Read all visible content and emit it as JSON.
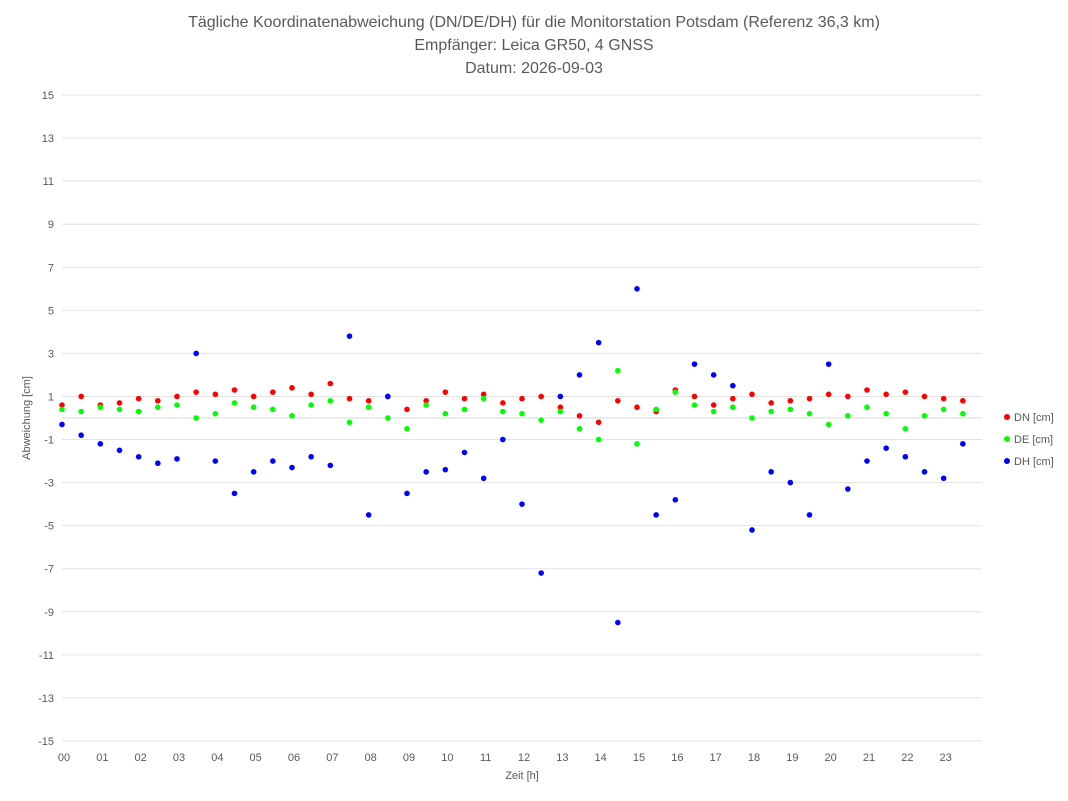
{
  "chart_data": {
    "type": "scatter",
    "title": "Tägliche Koordinatenabweichung (DN/DE/DH) für die Monitorstation Potsdam (Referenz 36,3 km)",
    "subtitle": "Empfänger: Leica GR50, 4 GNSS",
    "date_line": "Datum: 2026-09-03",
    "xlabel": "Zeit [h]",
    "ylabel": "Abweichung [cm]",
    "xlim": [
      0,
      24
    ],
    "ylim": [
      -15,
      15
    ],
    "x_ticks": [
      "00",
      "01",
      "02",
      "03",
      "04",
      "05",
      "06",
      "07",
      "08",
      "09",
      "10",
      "11",
      "12",
      "13",
      "14",
      "15",
      "16",
      "17",
      "18",
      "19",
      "20",
      "21",
      "22",
      "23"
    ],
    "y_ticks": [
      15,
      13,
      11,
      9,
      7,
      5,
      3,
      1,
      -1,
      -3,
      -5,
      -7,
      -9,
      -11,
      -13,
      -15
    ],
    "grid": true,
    "legend_position": "right",
    "series": [
      {
        "name": "DN [cm]",
        "color": "#ff0000",
        "x": [
          0.0,
          0.5,
          1.0,
          1.5,
          2.0,
          2.5,
          3.0,
          3.5,
          4.0,
          4.5,
          5.0,
          5.5,
          6.0,
          6.5,
          7.0,
          7.5,
          8.0,
          8.5,
          9.0,
          9.5,
          10.0,
          10.5,
          11.0,
          11.5,
          12.0,
          12.5,
          13.0,
          13.5,
          14.0,
          14.5,
          15.0,
          15.5,
          16.0,
          16.5,
          17.0,
          17.5,
          18.0,
          18.5,
          19.0,
          19.5,
          20.0,
          20.5,
          21.0,
          21.5,
          22.0,
          22.5,
          23.0,
          23.5
        ],
        "y": [
          0.6,
          1.0,
          0.6,
          0.7,
          0.9,
          0.8,
          1.0,
          1.2,
          1.1,
          1.3,
          1.0,
          1.2,
          1.4,
          1.1,
          1.6,
          0.9,
          0.8,
          1.0,
          0.4,
          0.8,
          1.2,
          0.9,
          1.1,
          0.7,
          0.9,
          1.0,
          0.5,
          0.1,
          -0.2,
          0.8,
          0.5,
          0.3,
          1.3,
          1.0,
          0.6,
          0.9,
          1.1,
          0.7,
          0.8,
          0.9,
          1.1,
          1.0,
          1.3,
          1.1,
          1.2,
          1.0,
          0.9,
          0.8
        ]
      },
      {
        "name": "DE [cm]",
        "color": "#00ff00",
        "x": [
          0.0,
          0.5,
          1.0,
          1.5,
          2.0,
          2.5,
          3.0,
          3.5,
          4.0,
          4.5,
          5.0,
          5.5,
          6.0,
          6.5,
          7.0,
          7.5,
          8.0,
          8.5,
          9.0,
          9.5,
          10.0,
          10.5,
          11.0,
          11.5,
          12.0,
          12.5,
          13.0,
          13.5,
          14.0,
          14.5,
          15.0,
          15.5,
          16.0,
          16.5,
          17.0,
          17.5,
          18.0,
          18.5,
          19.0,
          19.5,
          20.0,
          20.5,
          21.0,
          21.5,
          22.0,
          22.5,
          23.0,
          23.5
        ],
        "y": [
          0.4,
          0.3,
          0.5,
          0.4,
          0.3,
          0.5,
          0.6,
          0.0,
          0.2,
          0.7,
          0.5,
          0.4,
          0.1,
          0.6,
          0.8,
          -0.2,
          0.5,
          0.0,
          -0.5,
          0.6,
          0.2,
          0.4,
          0.9,
          0.3,
          0.2,
          -0.1,
          0.3,
          -0.5,
          -1.0,
          2.2,
          -1.2,
          0.4,
          1.2,
          0.6,
          0.3,
          0.5,
          0.0,
          0.3,
          0.4,
          0.2,
          -0.3,
          0.1,
          0.5,
          0.2,
          -0.5,
          0.1,
          0.4,
          0.2
        ]
      },
      {
        "name": "DH [cm]",
        "color": "#0000ff",
        "x": [
          0.0,
          0.5,
          1.0,
          1.5,
          2.0,
          2.5,
          3.0,
          3.5,
          4.0,
          4.5,
          5.0,
          5.5,
          6.0,
          6.5,
          7.0,
          7.5,
          8.0,
          8.5,
          9.0,
          9.5,
          10.0,
          10.5,
          11.0,
          11.5,
          12.0,
          12.5,
          13.0,
          13.5,
          14.0,
          14.5,
          15.0,
          15.5,
          16.0,
          16.5,
          17.0,
          17.5,
          18.0,
          18.5,
          19.0,
          19.5,
          20.0,
          20.5,
          21.0,
          21.5,
          22.0,
          22.5,
          23.0,
          23.5
        ],
        "y": [
          -0.3,
          -0.8,
          -1.2,
          -1.5,
          -1.8,
          -2.1,
          -1.9,
          3.0,
          -2.0,
          -3.5,
          -2.5,
          -2.0,
          -2.3,
          -1.8,
          -2.2,
          3.8,
          -4.5,
          1.0,
          -3.5,
          -2.5,
          -2.4,
          -1.6,
          -2.8,
          -1.0,
          -4.0,
          -7.2,
          1.0,
          2.0,
          3.5,
          -9.5,
          6.0,
          -4.5,
          -3.8,
          2.5,
          2.0,
          1.5,
          -5.2,
          -2.5,
          -3.0,
          -4.5,
          2.5,
          -3.3,
          -2.0,
          -1.4,
          -1.8,
          -2.5,
          -2.8,
          -1.2
        ]
      }
    ]
  }
}
